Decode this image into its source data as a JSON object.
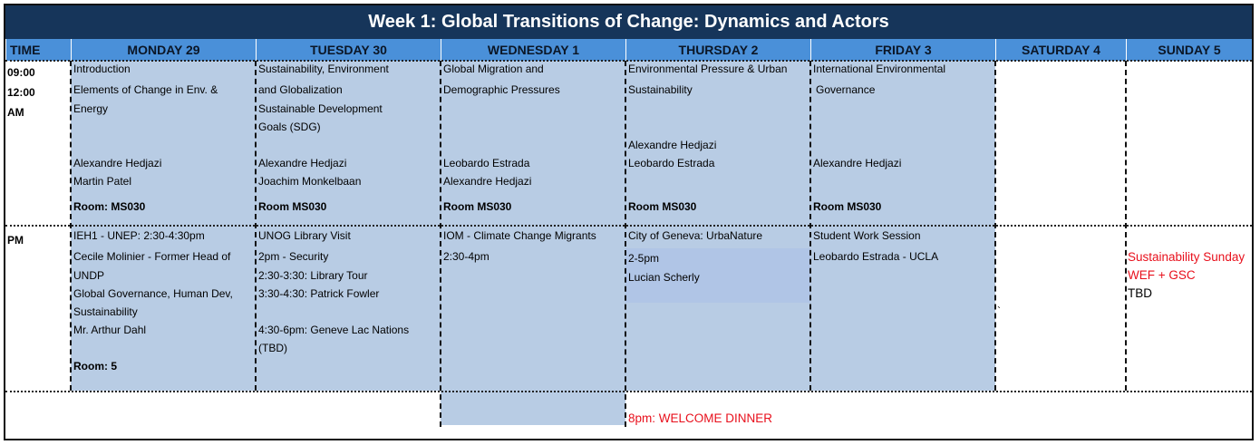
{
  "title": "Week 1: Global Transitions of Change: Dynamics and Actors",
  "headers": {
    "time": "TIME",
    "mon": "MONDAY 29",
    "tue": "TUESDAY 30",
    "wed": "WEDNESDAY 1",
    "thu": "THURSDAY 2",
    "fri": "FRIDAY 3",
    "sat": "SATURDAY 4",
    "sun": "SUNDAY 5"
  },
  "time": {
    "am_start": "09:00",
    "am_end": "12:00",
    "am_label": "AM",
    "pm_label": "PM"
  },
  "am": {
    "mon": {
      "l1": "Introduction",
      "l2": "Elements of Change in Env. &",
      "l3": "Energy",
      "p1": "Alexandre Hedjazi",
      "p2": "Martin Patel",
      "room": "Room: MS030"
    },
    "tue": {
      "l1": "Sustainability, Environment",
      "l2": "and Globalization",
      "l3": "Sustainable Development",
      "l4": "Goals (SDG)",
      "p1": "Alexandre Hedjazi",
      "p2": "Joachim Monkelbaan",
      "room": "Room MS030"
    },
    "wed": {
      "l1": "Global Migration and",
      "l2": "Demographic Pressures",
      "p1": "Leobardo Estrada",
      "p2": "Alexandre Hedjazi",
      "room": "Room MS030"
    },
    "thu": {
      "l1": "Environmental Pressure & Urban",
      "l2": "Sustainability",
      "p1": "Alexandre Hedjazi",
      "p2": "Leobardo Estrada",
      "room": "Room MS030"
    },
    "fri": {
      "l1": "International Environmental",
      "l2": "Governance",
      "p1": "Alexandre Hedjazi",
      "room": "Room MS030"
    }
  },
  "pm": {
    "mon": {
      "l1": "IEH1 - UNEP: 2:30-4:30pm",
      "l2": "Cecile Molinier - Former Head of",
      "l3": "UNDP",
      "l4": "Global Governance, Human Dev,",
      "l5": "Sustainability",
      "l6": "Mr. Arthur Dahl",
      "room": "Room: 5"
    },
    "tue": {
      "l1": "UNOG Library Visit",
      "l2": "2pm - Security",
      "l3": "2:30-3:30: Library Tour",
      "l4": "3:30-4:30: Patrick Fowler",
      "l5": "4:30-6pm: Geneve Lac Nations",
      "l6": "(TBD)"
    },
    "wed": {
      "l1": "IOM - Climate Change Migrants",
      "l2": "2:30-4pm"
    },
    "thu": {
      "l1": "City of Geneva: UrbaNature",
      "l2": "2-5pm",
      "l3": "Lucian Scherly"
    },
    "fri": {
      "l1": "Student Work Session",
      "l2": "Leobardo Estrada - UCLA"
    },
    "sat": {
      "mark": "`"
    },
    "sun": {
      "l1": "Sustainability Sunday",
      "l2": "WEF + GSC",
      "l3": "TBD"
    }
  },
  "evening": {
    "thu": "8pm: WELCOME DINNER"
  },
  "colors": {
    "title_bg": "#16355a",
    "header_bg": "#4a90d9",
    "cell_bg": "#b8cce4",
    "accent_red": "#e8101c"
  }
}
